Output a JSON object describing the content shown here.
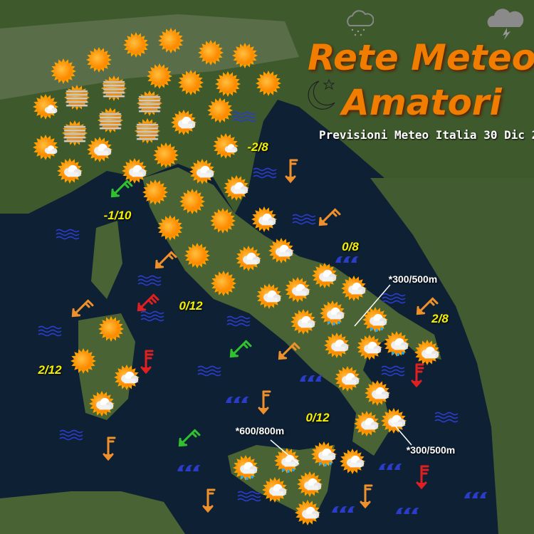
{
  "header": {
    "title_line1": "Rete Meteo",
    "title_line2": "Amatori",
    "subtitle": "Previsioni Meteo Italia 30 Dic 2",
    "logo_icons": [
      "rain-cloud-icon",
      "thunder-cloud-icon",
      "moon-star-icon"
    ]
  },
  "colors": {
    "sun": "#ff9c00",
    "label": "#f6f000",
    "wind_moderate": "#f0902a",
    "wind_strong": "#e02020",
    "wind_weak": "#30c030",
    "sea": "#2a3cc8",
    "title": "#f07c00"
  },
  "weather_icons": [
    "sun",
    "sun",
    "sun",
    "sun",
    "sun",
    "sun",
    "sun",
    "sun",
    "sun",
    "sun",
    "sun",
    "sun",
    "sun",
    "sun",
    "sun",
    "sun",
    "sun",
    "sun",
    "sun",
    "sun",
    "sun-fog",
    "sun-fog",
    "sun-fog",
    "sun-fog",
    "sun-fog",
    "sun-fog",
    "sun-small-cloud",
    "sun-small-cloud",
    "sun-small-cloud",
    "sun-cloud",
    "sun-cloud",
    "sun-cloud",
    "sun-cloud",
    "sun-cloud",
    "sun-cloud",
    "sun-cloud",
    "sun-cloud",
    "sun-cloud",
    "sun-cloud",
    "sun-cloud",
    "sun-cloud",
    "sun-cloud",
    "sun-cloud",
    "sun-cloud",
    "sun-cloud",
    "sun-cloud",
    "sun-cloud",
    "sun-cloud",
    "sun-cloud",
    "sun-cloud",
    "sun-cloud",
    "sun-cloud",
    "sun-cloud",
    "sun-cloud",
    "sun-cloud",
    "sun-cloud",
    "sun-cloud-rain",
    "sun-cloud-rain",
    "sun-cloud-rain",
    "sun-cloud-rain",
    "sun-cloud-rain",
    "sun-cloud-rain"
  ],
  "wind_arrows": [
    {
      "strength": "moderate",
      "direction": "N"
    },
    {
      "strength": "moderate",
      "direction": "NE"
    },
    {
      "strength": "moderate",
      "direction": "NE"
    },
    {
      "strength": "moderate",
      "direction": "NE"
    },
    {
      "strength": "moderate",
      "direction": "NE"
    },
    {
      "strength": "moderate",
      "direction": "NE"
    },
    {
      "strength": "moderate",
      "direction": "N"
    },
    {
      "strength": "moderate",
      "direction": "N"
    },
    {
      "strength": "moderate",
      "direction": "N"
    },
    {
      "strength": "moderate",
      "direction": "N"
    },
    {
      "strength": "strong",
      "direction": "NE"
    },
    {
      "strength": "strong",
      "direction": "N"
    },
    {
      "strength": "strong",
      "direction": "N"
    },
    {
      "strength": "strong",
      "direction": "N"
    },
    {
      "strength": "weak",
      "direction": "NE"
    },
    {
      "strength": "weak",
      "direction": "NE"
    },
    {
      "strength": "weak",
      "direction": "NE"
    }
  ],
  "sea_states": [
    "slight",
    "slight",
    "slight",
    "slight",
    "slight",
    "slight",
    "slight",
    "slight",
    "slight",
    "slight",
    "slight",
    "slight",
    "slight",
    "slight",
    "rough",
    "rough",
    "rough",
    "rough",
    "rough",
    "rough",
    "rough",
    "rough"
  ],
  "temperatures": [
    "-2/8",
    "-1/10",
    "0/8",
    "0/12",
    "2/8",
    "2/12",
    "0/12"
  ],
  "snow_levels": [
    "*300/500m",
    "*600/800m",
    "*300/500m"
  ]
}
